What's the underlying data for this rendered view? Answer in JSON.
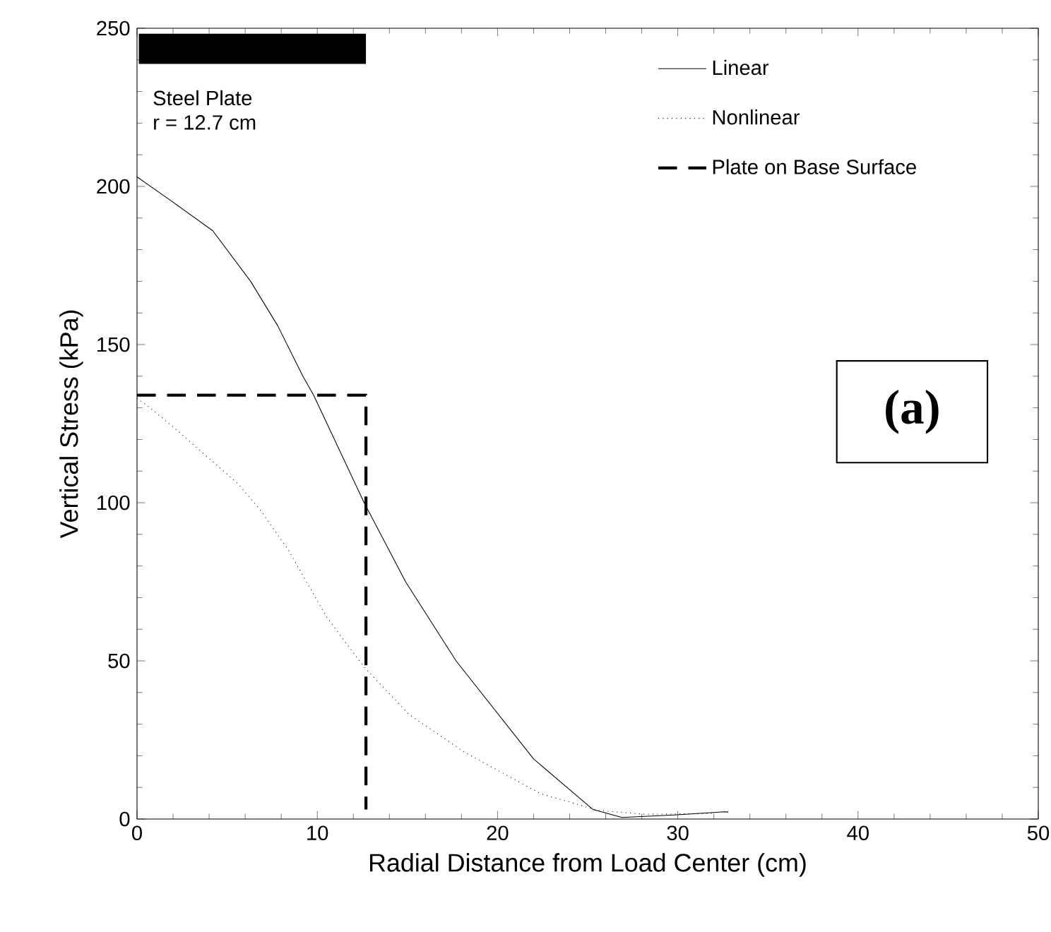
{
  "chart_data": {
    "type": "line",
    "xlabel": "Radial Distance from Load Center (cm)",
    "ylabel": "Vertical Stress (kPa)",
    "xlim": [
      0,
      50
    ],
    "ylim": [
      0,
      250
    ],
    "xticks": [
      0,
      10,
      20,
      30,
      40,
      50
    ],
    "yticks": [
      0,
      50,
      100,
      150,
      200,
      250
    ],
    "grid": false,
    "legend": "top right",
    "series": [
      {
        "name": "Linear",
        "color": "#000000",
        "line_style": "solid",
        "x": [
          0,
          2.0,
          4.2,
          6.3,
          7.8,
          9.2,
          9.8,
          12.6,
          14.9,
          17.7,
          22.0,
          25.3,
          26.9,
          29.8,
          32.6,
          32.8
        ],
        "values": [
          203,
          195,
          186,
          170,
          156,
          140,
          134,
          100,
          75,
          50,
          19,
          3,
          0.5,
          1.3,
          2.3,
          2.2
        ]
      },
      {
        "name": "Nonlinear",
        "color": "#000000",
        "line_style": "dotted",
        "x": [
          0,
          0.5,
          2.0,
          5.6,
          6.8,
          8.4,
          10.5,
          12.6,
          15.1,
          18.2,
          22.4,
          25.6,
          28.2,
          32.1
        ],
        "values": [
          133,
          131,
          124,
          106,
          98,
          85,
          64,
          48,
          33,
          21,
          8,
          2.7,
          1.5,
          1.8
        ]
      },
      {
        "name": "Plate on Base Surface",
        "color": "#000000",
        "line_style": "dashed",
        "x": [
          0,
          12.7,
          12.7
        ],
        "values": [
          134,
          134,
          3
        ]
      }
    ],
    "annotations": [
      "Steel Plate",
      "r = 12.7 cm",
      "**(a)**"
    ]
  }
}
